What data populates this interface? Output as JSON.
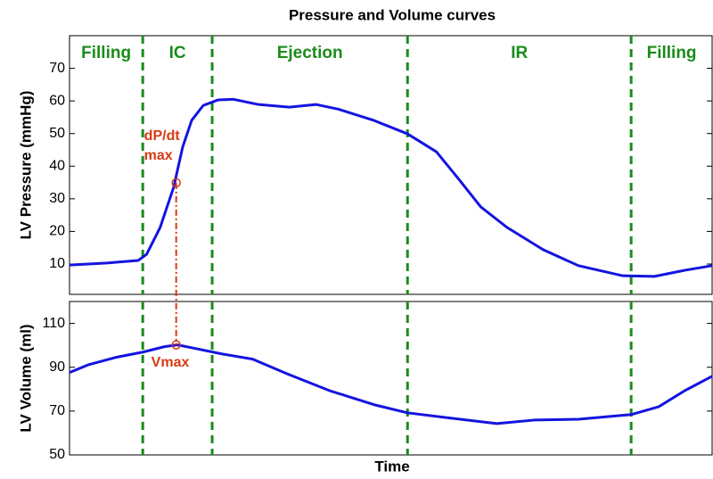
{
  "chart_data": [
    {
      "type": "line",
      "title": "Pressure and Volume curves",
      "ylabel": "LV Pressure (mmHg)",
      "xlim": [
        0,
        100
      ],
      "ylim": [
        0.7,
        80
      ],
      "yticks": [
        10,
        20,
        30,
        40,
        50,
        60,
        70
      ],
      "x": [
        0,
        5.8,
        10.7,
        12.0,
        14.1,
        16.2,
        17.6,
        19.0,
        20.8,
        23.1,
        25.5,
        29.4,
        34.2,
        38.4,
        41.8,
        47.4,
        52.6,
        57.1,
        60.5,
        64.0,
        68.1,
        73.7,
        79.2,
        86.1,
        91.0,
        95.8,
        100
      ],
      "series": [
        {
          "color": "#1414e0",
          "values": [
            9.7,
            10.3,
            11.1,
            13.0,
            21.2,
            33.5,
            45.8,
            54.0,
            58.6,
            60.3,
            60.5,
            58.9,
            58.1,
            58.9,
            57.5,
            54.0,
            49.9,
            44.4,
            36.2,
            27.5,
            21.2,
            14.4,
            9.5,
            6.4,
            6.2,
            8.1,
            9.5
          ]
        }
      ],
      "vlines": {
        "x": [
          11.4,
          22.2,
          52.6,
          87.4
        ],
        "color": "#1a8c1a"
      },
      "phases": [
        "Filling",
        "IC",
        "Ejection",
        "IR",
        "Filling"
      ],
      "annotation": {
        "text": [
          "dP/dt",
          "max"
        ],
        "x": 16.6,
        "y": 34.9,
        "color": "#d83a14"
      }
    },
    {
      "type": "line",
      "ylabel": "LV Volume (ml)",
      "xlabel": "Time",
      "xlim": [
        0,
        100
      ],
      "ylim": [
        50,
        120
      ],
      "yticks": [
        50,
        70,
        90,
        110
      ],
      "x": [
        0,
        3.0,
        7.2,
        11.4,
        14.8,
        16.8,
        19.5,
        23.7,
        28.5,
        33.8,
        40.4,
        47.4,
        52.6,
        59.6,
        66.5,
        72.3,
        79.2,
        87.4,
        91.7,
        95.8,
        100
      ],
      "series": [
        {
          "color": "#1414e0",
          "values": [
            87.6,
            91.2,
            94.5,
            96.9,
            99.4,
            100.2,
            98.6,
            96.1,
            93.7,
            87.1,
            79.4,
            72.9,
            69.2,
            66.7,
            64.3,
            65.9,
            66.3,
            68.4,
            72.0,
            79.4,
            85.9
          ]
        }
      ],
      "vlines": {
        "x": [
          11.4,
          22.2,
          52.6,
          87.4
        ],
        "color": "#1a8c1a"
      },
      "annotation": {
        "text": [
          "Vmax"
        ],
        "x": 16.6,
        "y": 100.2,
        "color": "#d83a14"
      }
    }
  ]
}
